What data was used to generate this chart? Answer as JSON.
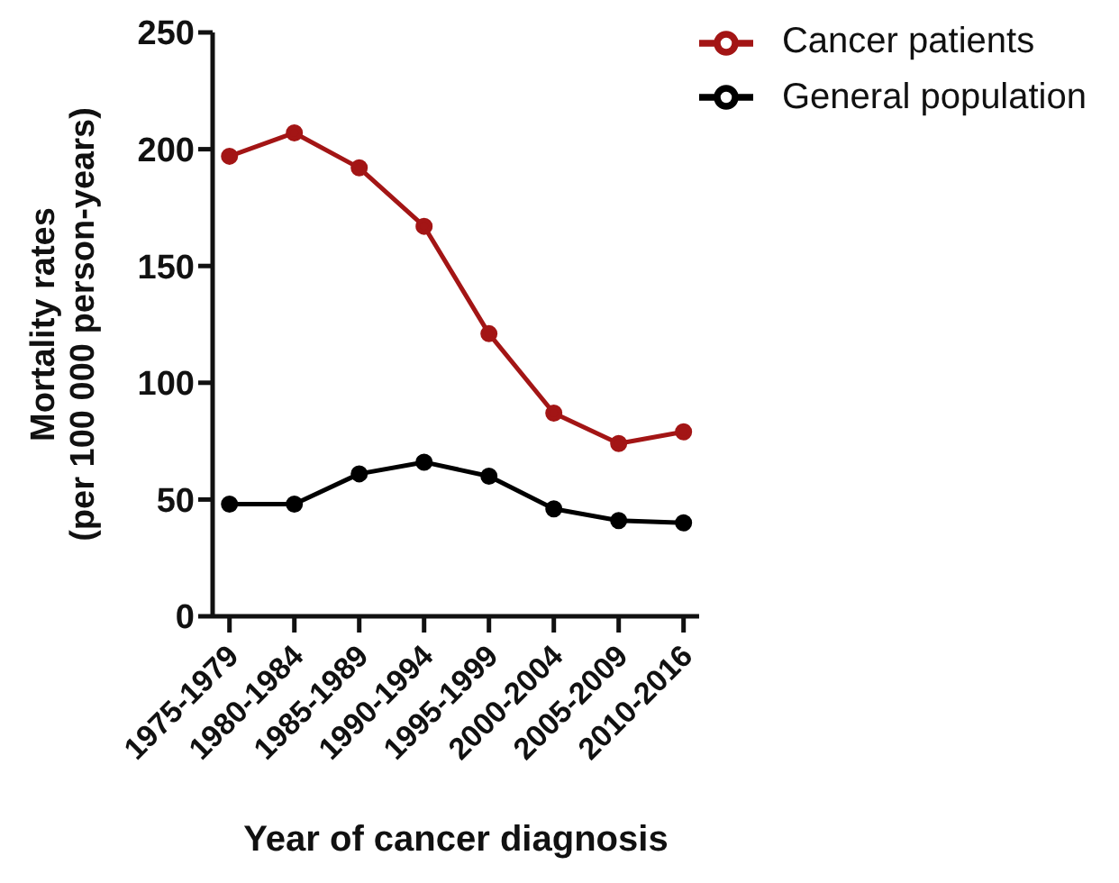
{
  "chart_data": {
    "type": "line",
    "xlabel": "Year of cancer diagnosis",
    "ylabel": "Mortality rates\n(per 100 000 person-years)",
    "categories": [
      "1975-1979",
      "1980-1984",
      "1985-1989",
      "1990-1994",
      "1995-1999",
      "2000-2004",
      "2005-2009",
      "2010-2016"
    ],
    "series": [
      {
        "name": "Cancer patients",
        "color": "#a31515",
        "values": [
          197,
          207,
          192,
          167,
          121,
          87,
          74,
          79
        ]
      },
      {
        "name": "General population",
        "color": "#000000",
        "values": [
          48,
          48,
          61,
          66,
          60,
          46,
          41,
          40
        ]
      }
    ],
    "ylim": [
      0,
      250
    ],
    "yticks": [
      0,
      50,
      100,
      150,
      200,
      250
    ],
    "grid": false,
    "legend": "top right",
    "marker": "circle",
    "line_style": "solid"
  }
}
